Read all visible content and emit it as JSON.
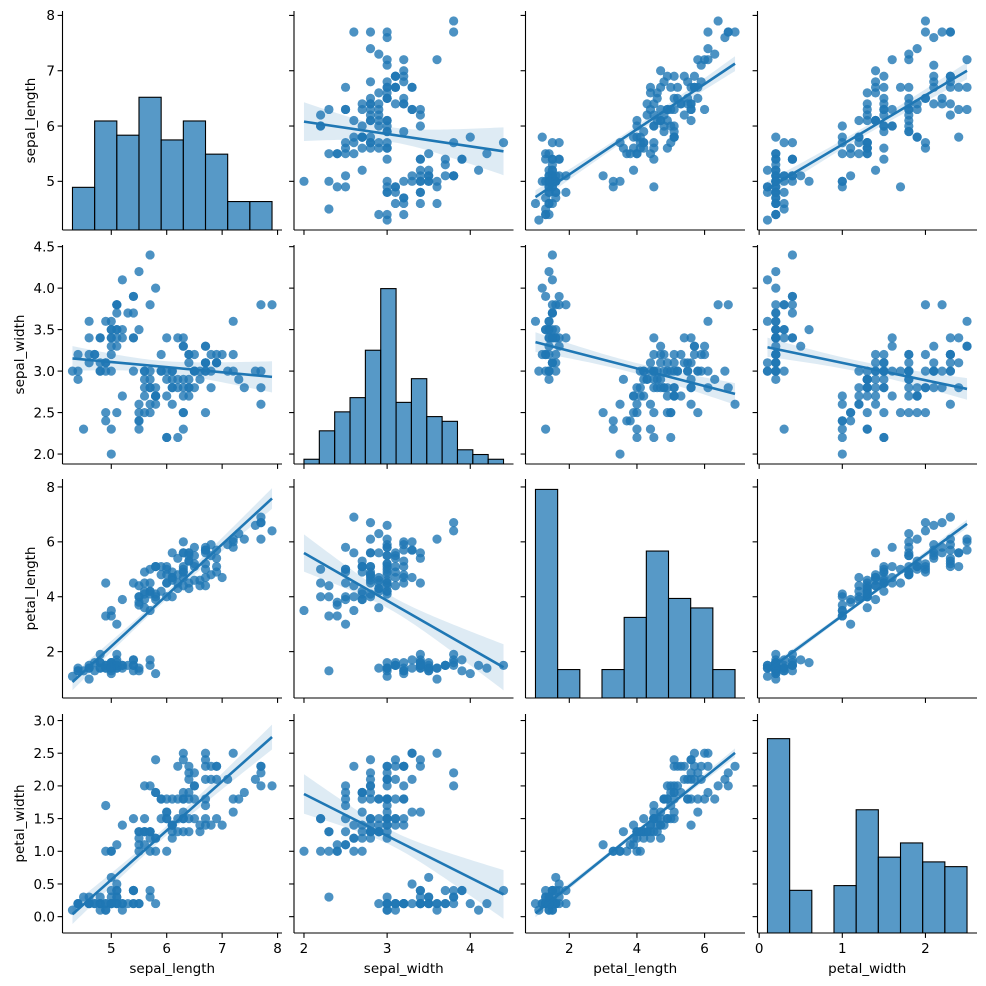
{
  "chart_data": {
    "type": "scatter",
    "kind": "pairplot",
    "diagonal": "histogram",
    "regression": "linear fit with 95% confidence band",
    "grid": false,
    "legend": "none",
    "colors": {
      "points": "#1f77b4",
      "line": "#1f77b4",
      "band": "#1f77b4",
      "hist_fill": "#1f77b4",
      "hist_edge": "#000000"
    },
    "variables": [
      "sepal_length",
      "sepal_width",
      "petal_length",
      "petal_width"
    ],
    "axes": {
      "sepal_length": {
        "xlim": [
          4.12,
          8.08
        ],
        "ylim": [
          4.12,
          8.08
        ],
        "hist_bins": 9,
        "xticks": [
          {
            "v": 5,
            "label": "5"
          },
          {
            "v": 6,
            "label": "6"
          },
          {
            "v": 7,
            "label": "7"
          },
          {
            "v": 8,
            "label": "8"
          }
        ],
        "yticks": [
          {
            "v": 5,
            "label": "5"
          },
          {
            "v": 6,
            "label": "6"
          },
          {
            "v": 7,
            "label": "7"
          },
          {
            "v": 8,
            "label": "8"
          }
        ]
      },
      "sepal_width": {
        "xlim": [
          1.88,
          4.52
        ],
        "ylim": [
          1.88,
          4.52
        ],
        "hist_bins": 13,
        "xticks": [
          {
            "v": 2,
            "label": "2"
          },
          {
            "v": 3,
            "label": "3"
          },
          {
            "v": 4,
            "label": "4"
          }
        ],
        "yticks": [
          {
            "v": 2.0,
            "label": "2.0"
          },
          {
            "v": 2.5,
            "label": "2.5"
          },
          {
            "v": 3.0,
            "label": "3.0"
          },
          {
            "v": 3.5,
            "label": "3.5"
          },
          {
            "v": 4.0,
            "label": "4.0"
          },
          {
            "v": 4.5,
            "label": "4.5"
          }
        ]
      },
      "petal_length": {
        "xlim": [
          0.705,
          7.195
        ],
        "ylim": [
          0.31,
          8.29
        ],
        "hist_bins": 9,
        "xticks": [
          {
            "v": 2,
            "label": "2"
          },
          {
            "v": 4,
            "label": "4"
          },
          {
            "v": 6,
            "label": "6"
          }
        ],
        "yticks": [
          {
            "v": 2,
            "label": "2"
          },
          {
            "v": 4,
            "label": "4"
          },
          {
            "v": 6,
            "label": "6"
          },
          {
            "v": 8,
            "label": "8"
          }
        ]
      },
      "petal_width": {
        "xlim": [
          -0.02,
          2.62
        ],
        "ylim": [
          -0.25,
          3.1
        ],
        "hist_bins": 9,
        "xticks": [
          {
            "v": 0,
            "label": "0"
          },
          {
            "v": 1,
            "label": "1"
          },
          {
            "v": 2,
            "label": "2"
          }
        ],
        "yticks": [
          {
            "v": 0.0,
            "label": "0.0"
          },
          {
            "v": 0.5,
            "label": "0.5"
          },
          {
            "v": 1.0,
            "label": "1.0"
          },
          {
            "v": 1.5,
            "label": "1.5"
          },
          {
            "v": 2.0,
            "label": "2.0"
          },
          {
            "v": 2.5,
            "label": "2.5"
          },
          {
            "v": 3.0,
            "label": "3.0"
          }
        ]
      }
    },
    "columns": {
      "sepal_length": [
        5.1,
        4.9,
        4.7,
        4.6,
        5.0,
        5.4,
        4.6,
        5.0,
        4.4,
        4.9,
        5.4,
        4.8,
        4.8,
        4.3,
        5.8,
        5.7,
        5.4,
        5.1,
        5.7,
        5.1,
        5.4,
        5.1,
        4.6,
        5.1,
        4.8,
        5.0,
        5.0,
        5.2,
        5.2,
        4.7,
        4.8,
        5.4,
        5.2,
        5.5,
        4.9,
        5.0,
        5.5,
        4.9,
        4.4,
        5.1,
        5.0,
        4.5,
        4.4,
        5.0,
        5.1,
        4.8,
        5.1,
        4.6,
        5.3,
        5.0,
        7.0,
        6.4,
        6.9,
        5.5,
        6.5,
        5.7,
        6.3,
        4.9,
        6.6,
        5.2,
        5.0,
        5.9,
        6.0,
        6.1,
        5.6,
        6.7,
        5.6,
        5.8,
        6.2,
        5.6,
        5.9,
        6.1,
        6.3,
        6.1,
        6.4,
        6.6,
        6.8,
        6.7,
        6.0,
        5.7,
        5.5,
        5.5,
        5.8,
        6.0,
        5.4,
        6.0,
        6.7,
        6.3,
        5.6,
        5.5,
        5.5,
        6.1,
        5.8,
        5.0,
        5.6,
        5.7,
        5.7,
        6.2,
        5.1,
        5.7,
        6.3,
        5.8,
        7.1,
        6.3,
        6.5,
        7.6,
        4.9,
        7.3,
        6.7,
        7.2,
        6.5,
        6.4,
        6.8,
        5.7,
        5.8,
        6.4,
        6.5,
        7.7,
        7.7,
        6.0,
        6.9,
        5.6,
        7.7,
        6.3,
        6.7,
        7.2,
        6.2,
        6.1,
        6.4,
        7.2,
        7.4,
        7.9,
        6.4,
        6.3,
        6.1,
        7.7,
        6.3,
        6.4,
        6.0,
        6.9,
        6.7,
        6.9,
        5.8,
        6.8,
        6.7,
        6.7,
        6.3,
        6.5,
        6.2,
        5.9
      ],
      "sepal_width": [
        3.5,
        3.0,
        3.2,
        3.1,
        3.6,
        3.9,
        3.4,
        3.4,
        2.9,
        3.1,
        3.7,
        3.4,
        3.0,
        3.0,
        4.0,
        4.4,
        3.9,
        3.5,
        3.8,
        3.8,
        3.4,
        3.7,
        3.6,
        3.3,
        3.4,
        3.0,
        3.4,
        3.5,
        3.4,
        3.2,
        3.1,
        3.4,
        4.1,
        4.2,
        3.1,
        3.2,
        3.5,
        3.6,
        3.0,
        3.4,
        3.5,
        2.3,
        3.2,
        3.5,
        3.8,
        3.0,
        3.8,
        3.2,
        3.7,
        3.3,
        3.2,
        3.2,
        3.1,
        2.3,
        2.8,
        2.8,
        3.3,
        2.4,
        2.9,
        2.7,
        2.0,
        3.0,
        2.2,
        2.9,
        2.9,
        3.1,
        3.0,
        2.7,
        2.2,
        2.5,
        3.2,
        2.8,
        2.5,
        2.8,
        2.9,
        3.0,
        2.8,
        3.0,
        2.9,
        2.6,
        2.4,
        2.4,
        2.7,
        2.7,
        3.0,
        3.4,
        3.1,
        2.3,
        3.0,
        2.5,
        2.6,
        3.0,
        2.6,
        2.3,
        2.7,
        3.0,
        2.9,
        2.9,
        2.5,
        2.8,
        3.3,
        2.7,
        3.0,
        2.9,
        3.0,
        3.0,
        2.5,
        2.9,
        2.5,
        3.6,
        3.2,
        2.7,
        3.0,
        2.5,
        2.8,
        3.2,
        3.0,
        3.8,
        2.6,
        2.2,
        3.2,
        2.8,
        2.8,
        2.7,
        3.3,
        3.2,
        2.8,
        3.0,
        2.8,
        3.0,
        2.8,
        3.8,
        2.8,
        2.8,
        2.6,
        3.0,
        3.4,
        3.1,
        3.0,
        3.1,
        3.1,
        3.1,
        2.7,
        3.2,
        3.3,
        3.0,
        2.5,
        3.0,
        3.4,
        3.0
      ],
      "petal_length": [
        1.4,
        1.4,
        1.3,
        1.5,
        1.4,
        1.7,
        1.4,
        1.5,
        1.4,
        1.5,
        1.5,
        1.6,
        1.4,
        1.1,
        1.2,
        1.5,
        1.3,
        1.4,
        1.7,
        1.5,
        1.7,
        1.5,
        1.0,
        1.7,
        1.9,
        1.6,
        1.6,
        1.5,
        1.4,
        1.6,
        1.6,
        1.5,
        1.5,
        1.4,
        1.5,
        1.2,
        1.3,
        1.4,
        1.3,
        1.5,
        1.3,
        1.3,
        1.3,
        1.6,
        1.9,
        1.4,
        1.6,
        1.4,
        1.5,
        1.4,
        4.7,
        4.5,
        4.9,
        4.0,
        4.6,
        4.5,
        4.7,
        3.3,
        4.6,
        3.9,
        3.5,
        4.2,
        4.0,
        4.7,
        3.6,
        4.4,
        4.5,
        4.1,
        4.5,
        3.9,
        4.8,
        4.0,
        4.9,
        4.7,
        4.3,
        4.4,
        4.8,
        5.0,
        4.5,
        3.5,
        3.8,
        3.7,
        3.9,
        5.1,
        4.5,
        4.5,
        4.7,
        4.4,
        4.1,
        4.0,
        4.4,
        4.6,
        4.0,
        3.3,
        4.2,
        4.2,
        4.2,
        4.3,
        3.0,
        4.1,
        6.0,
        5.1,
        5.9,
        5.6,
        5.8,
        6.6,
        4.5,
        6.3,
        5.8,
        6.1,
        5.1,
        5.3,
        5.5,
        5.0,
        5.1,
        5.3,
        5.5,
        6.7,
        6.9,
        5.0,
        5.7,
        4.9,
        6.7,
        4.9,
        5.7,
        6.0,
        4.8,
        4.9,
        5.6,
        5.8,
        6.1,
        6.4,
        5.6,
        5.1,
        5.6,
        6.1,
        5.6,
        5.5,
        4.8,
        5.4,
        5.6,
        5.1,
        5.1,
        5.9,
        5.7,
        5.2,
        5.0,
        5.2,
        5.4,
        5.1
      ],
      "petal_width": [
        0.2,
        0.2,
        0.2,
        0.2,
        0.2,
        0.4,
        0.3,
        0.2,
        0.2,
        0.1,
        0.2,
        0.2,
        0.1,
        0.1,
        0.2,
        0.4,
        0.4,
        0.3,
        0.3,
        0.3,
        0.2,
        0.4,
        0.2,
        0.5,
        0.2,
        0.2,
        0.4,
        0.2,
        0.2,
        0.2,
        0.2,
        0.4,
        0.1,
        0.2,
        0.2,
        0.2,
        0.2,
        0.1,
        0.2,
        0.2,
        0.3,
        0.3,
        0.2,
        0.6,
        0.4,
        0.3,
        0.2,
        0.2,
        0.2,
        0.2,
        1.4,
        1.5,
        1.5,
        1.3,
        1.5,
        1.3,
        1.6,
        1.0,
        1.3,
        1.4,
        1.0,
        1.5,
        1.0,
        1.4,
        1.3,
        1.4,
        1.5,
        1.0,
        1.5,
        1.1,
        1.8,
        1.3,
        1.5,
        1.2,
        1.3,
        1.4,
        1.4,
        1.7,
        1.5,
        1.0,
        1.1,
        1.0,
        1.2,
        1.6,
        1.5,
        1.6,
        1.5,
        1.3,
        1.3,
        1.3,
        1.2,
        1.4,
        1.2,
        1.0,
        1.3,
        1.2,
        1.3,
        1.3,
        1.1,
        1.3,
        2.5,
        1.9,
        2.1,
        1.8,
        2.2,
        2.1,
        1.7,
        1.8,
        1.8,
        2.5,
        2.0,
        1.9,
        2.1,
        2.0,
        2.4,
        2.3,
        1.8,
        2.2,
        2.3,
        1.5,
        2.3,
        2.0,
        2.0,
        1.8,
        2.1,
        1.8,
        1.8,
        1.8,
        2.1,
        1.6,
        1.9,
        2.0,
        2.2,
        1.5,
        1.4,
        2.3,
        2.4,
        1.8,
        1.8,
        2.1,
        2.4,
        2.3,
        1.9,
        2.3,
        2.5,
        2.3,
        1.9,
        2.0,
        2.3,
        1.8
      ]
    }
  }
}
